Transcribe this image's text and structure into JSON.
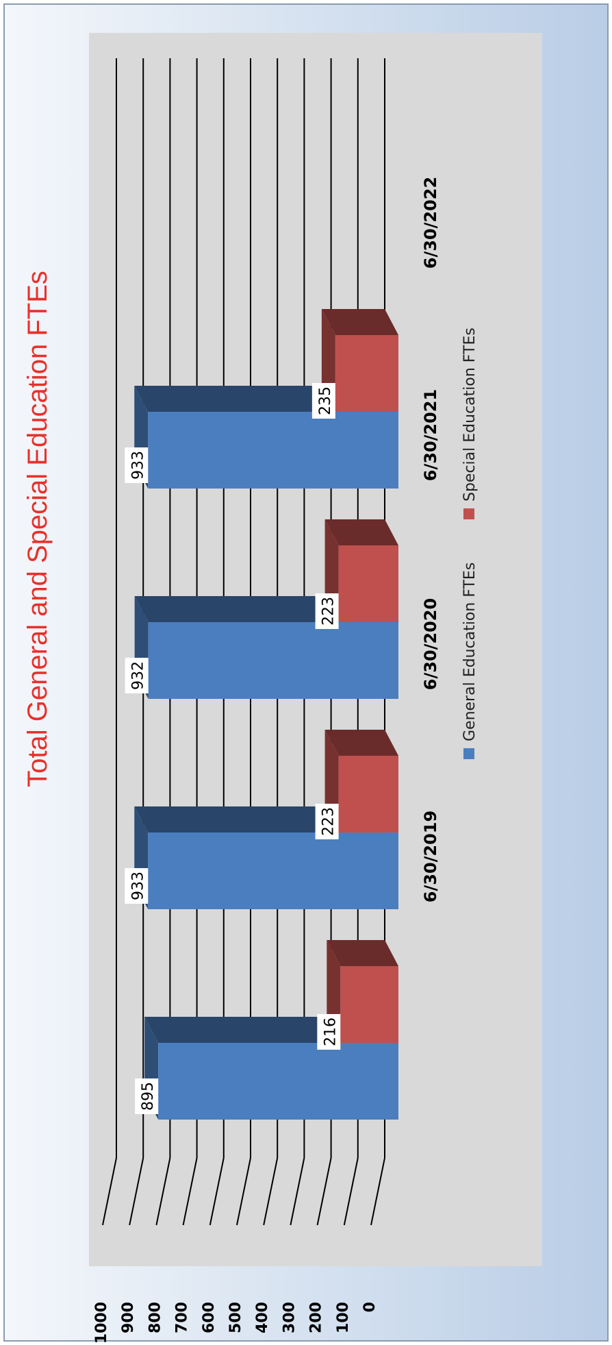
{
  "chart_data": {
    "type": "bar",
    "title": "Total General and Special Education FTEs",
    "categories": [
      "6/30/2019",
      "6/30/2020",
      "6/30/2021",
      "6/30/2022"
    ],
    "series": [
      {
        "name": "General Education FTEs",
        "values": [
          895,
          933,
          932,
          933
        ],
        "color": "#4a7ebf"
      },
      {
        "name": "Special Education FTEs",
        "values": [
          216,
          223,
          223,
          235
        ],
        "color": "#c0504d"
      }
    ],
    "y_ticks": [
      0,
      100,
      200,
      300,
      400,
      500,
      600,
      700,
      800,
      900,
      1000
    ],
    "ylim": [
      0,
      1000
    ],
    "grid": true,
    "legend_position": "bottom",
    "orientation": "rotated-90-counterclockwise",
    "style": "3d-bar",
    "title_color": "#e8302a"
  }
}
